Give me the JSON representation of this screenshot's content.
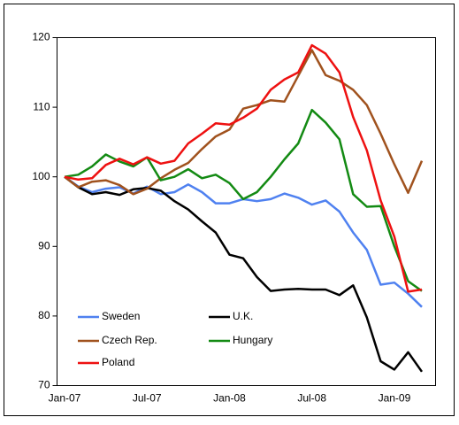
{
  "chart_data": {
    "type": "line",
    "categories": [
      "Jan-07",
      null,
      null,
      null,
      null,
      null,
      "Jul-07",
      null,
      null,
      null,
      null,
      null,
      "Jan-08",
      null,
      null,
      null,
      null,
      null,
      "Jul-08",
      null,
      null,
      null,
      null,
      null,
      "Jan-09",
      null,
      null
    ],
    "series": [
      {
        "name": "Sweden",
        "color": "#4f81f0",
        "values": [
          100,
          98.6,
          97.8,
          98.3,
          98.5,
          97.6,
          98.6,
          97.5,
          97.8,
          98.9,
          97.8,
          96.2,
          96.2,
          96.8,
          96.5,
          96.8,
          97.6,
          97.0,
          96.0,
          96.6,
          95.0,
          92.0,
          89.5,
          84.5,
          84.8,
          83.2,
          81.3
        ]
      },
      {
        "name": "U.K.",
        "color": "#000000",
        "values": [
          100,
          98.5,
          97.5,
          97.8,
          97.4,
          98.2,
          98.4,
          98.0,
          96.5,
          95.3,
          93.6,
          92.0,
          88.8,
          88.3,
          85.6,
          83.6,
          83.8,
          83.9,
          83.8,
          83.8,
          83.0,
          84.4,
          79.8,
          73.5,
          72.3,
          74.8,
          72.0
        ]
      },
      {
        "name": "Czech Rep.",
        "color": "#a0521e",
        "values": [
          100,
          98.5,
          99.3,
          99.5,
          98.8,
          97.5,
          98.3,
          99.8,
          101,
          102,
          104,
          105.8,
          106.8,
          109.8,
          110.3,
          111,
          110.8,
          114.5,
          118.2,
          114.6,
          113.8,
          112.5,
          110.3,
          106.2,
          101.8,
          97.7,
          102.3
        ]
      },
      {
        "name": "Hungary",
        "color": "#138a13",
        "values": [
          100,
          100.3,
          101.5,
          103.2,
          102.2,
          101.5,
          102.8,
          99.5,
          100,
          101.1,
          99.8,
          100.3,
          99.1,
          96.8,
          97.8,
          100,
          102.5,
          104.8,
          109.6,
          107.8,
          105.4,
          97.5,
          95.7,
          95.8,
          90,
          85,
          83.6
        ]
      },
      {
        "name": "Poland",
        "color": "#ee1111",
        "values": [
          100,
          99.6,
          99.8,
          101.7,
          102.6,
          101.8,
          102.8,
          101.9,
          102.3,
          104.8,
          106.2,
          107.7,
          107.5,
          108.5,
          109.8,
          112.5,
          114,
          115,
          118.9,
          117.7,
          115,
          108.6,
          103.8,
          96.6,
          91.4,
          83.5,
          83.8
        ]
      }
    ],
    "ylim": [
      70,
      120
    ],
    "yticks": [
      70,
      80,
      90,
      100,
      110,
      120
    ]
  }
}
